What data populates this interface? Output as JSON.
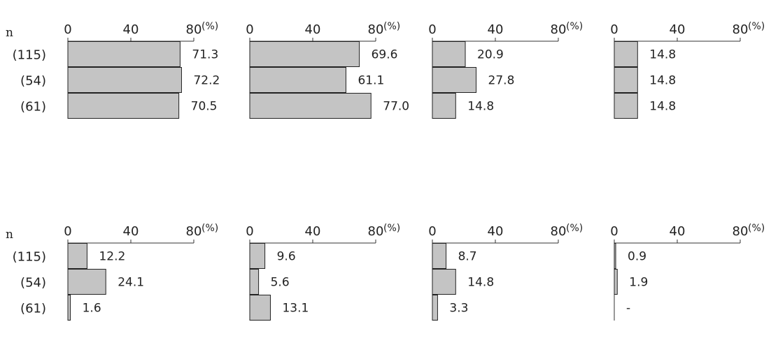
{
  "n_label": "n",
  "row_labels": [
    "(115)",
    "(54)",
    "(61)"
  ],
  "unit": "(%)",
  "chart_data": [
    {
      "type": "bar",
      "orientation": "horizontal",
      "categories": [
        "(115)",
        "(54)",
        "(61)"
      ],
      "values": [
        71.3,
        72.2,
        70.5
      ],
      "labels": [
        "71.3",
        "72.2",
        "70.5"
      ],
      "xlim": [
        0,
        80
      ],
      "ticks": [
        "0",
        "40",
        "80"
      ],
      "unit": "(%)"
    },
    {
      "type": "bar",
      "orientation": "horizontal",
      "categories": [
        "(115)",
        "(54)",
        "(61)"
      ],
      "values": [
        69.6,
        61.1,
        77.0
      ],
      "labels": [
        "69.6",
        "61.1",
        "77.0"
      ],
      "xlim": [
        0,
        80
      ],
      "ticks": [
        "0",
        "40",
        "80"
      ],
      "unit": "(%)"
    },
    {
      "type": "bar",
      "orientation": "horizontal",
      "categories": [
        "(115)",
        "(54)",
        "(61)"
      ],
      "values": [
        20.9,
        27.8,
        14.8
      ],
      "labels": [
        "20.9",
        "27.8",
        "14.8"
      ],
      "xlim": [
        0,
        80
      ],
      "ticks": [
        "0",
        "40",
        "80"
      ],
      "unit": "(%)"
    },
    {
      "type": "bar",
      "orientation": "horizontal",
      "categories": [
        "(115)",
        "(54)",
        "(61)"
      ],
      "values": [
        14.8,
        14.8,
        14.8
      ],
      "labels": [
        "14.8",
        "14.8",
        "14.8"
      ],
      "xlim": [
        0,
        80
      ],
      "ticks": [
        "0",
        "40",
        "80"
      ],
      "unit": "(%)"
    },
    {
      "type": "bar",
      "orientation": "horizontal",
      "categories": [
        "(115)",
        "(54)",
        "(61)"
      ],
      "values": [
        12.2,
        24.1,
        1.6
      ],
      "labels": [
        "12.2",
        "24.1",
        "1.6"
      ],
      "xlim": [
        0,
        80
      ],
      "ticks": [
        "0",
        "40",
        "80"
      ],
      "unit": "(%)"
    },
    {
      "type": "bar",
      "orientation": "horizontal",
      "categories": [
        "(115)",
        "(54)",
        "(61)"
      ],
      "values": [
        9.6,
        5.6,
        13.1
      ],
      "labels": [
        "9.6",
        "5.6",
        "13.1"
      ],
      "xlim": [
        0,
        80
      ],
      "ticks": [
        "0",
        "40",
        "80"
      ],
      "unit": "(%)"
    },
    {
      "type": "bar",
      "orientation": "horizontal",
      "categories": [
        "(115)",
        "(54)",
        "(61)"
      ],
      "values": [
        8.7,
        14.8,
        3.3
      ],
      "labels": [
        "8.7",
        "14.8",
        "3.3"
      ],
      "xlim": [
        0,
        80
      ],
      "ticks": [
        "0",
        "40",
        "80"
      ],
      "unit": "(%)"
    },
    {
      "type": "bar",
      "orientation": "horizontal",
      "categories": [
        "(115)",
        "(54)",
        "(61)"
      ],
      "values": [
        0.9,
        1.9,
        0
      ],
      "labels": [
        "0.9",
        "1.9",
        "-"
      ],
      "xlim": [
        0,
        80
      ],
      "ticks": [
        "0",
        "40",
        "80"
      ],
      "unit": "(%)"
    }
  ]
}
